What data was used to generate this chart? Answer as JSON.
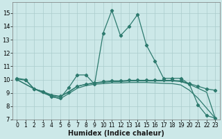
{
  "bg_color": "#cce8e8",
  "grid_color": "#aacccc",
  "line_color": "#2d7a6e",
  "xlabel": "Humidex (Indice chaleur)",
  "xlim": [
    -0.5,
    23.5
  ],
  "ylim": [
    7,
    15.8
  ],
  "yticks": [
    7,
    8,
    9,
    10,
    11,
    12,
    13,
    14,
    15
  ],
  "xticks": [
    0,
    1,
    2,
    3,
    4,
    5,
    6,
    7,
    8,
    9,
    10,
    11,
    12,
    13,
    14,
    15,
    16,
    17,
    18,
    19,
    20,
    21,
    22,
    23
  ],
  "series1_x": [
    0,
    1,
    2,
    3,
    4,
    5,
    6,
    7,
    8,
    9,
    10,
    11,
    12,
    13,
    14,
    15,
    16,
    17,
    18,
    19,
    20,
    21,
    22,
    23
  ],
  "series1_y": [
    10.1,
    10.0,
    9.3,
    9.1,
    8.7,
    8.6,
    9.4,
    10.35,
    10.35,
    9.65,
    13.5,
    15.2,
    13.3,
    14.0,
    14.9,
    12.6,
    11.4,
    10.1,
    10.1,
    10.1,
    9.65,
    8.1,
    7.3,
    7.1
  ],
  "series2_x": [
    0,
    1,
    2,
    3,
    4,
    5,
    6,
    7,
    8,
    9,
    10,
    11,
    12,
    13,
    14,
    15,
    16,
    17,
    18,
    19,
    20,
    21,
    22,
    23
  ],
  "series2_y": [
    10.05,
    9.95,
    9.3,
    9.1,
    8.85,
    8.75,
    9.05,
    9.5,
    9.65,
    9.75,
    9.85,
    9.9,
    9.9,
    9.95,
    9.95,
    9.95,
    9.95,
    9.95,
    9.95,
    9.9,
    9.7,
    9.5,
    9.3,
    9.2
  ],
  "series3_x": [
    0,
    2,
    3,
    4,
    5,
    6,
    7,
    8,
    9,
    10,
    11,
    12,
    13,
    14,
    15,
    16,
    17,
    18,
    19,
    20,
    21,
    22,
    23
  ],
  "series3_y": [
    10.0,
    9.3,
    9.1,
    8.8,
    8.7,
    9.1,
    9.5,
    9.65,
    9.75,
    9.8,
    9.85,
    9.85,
    9.9,
    9.9,
    9.9,
    9.9,
    9.9,
    9.9,
    9.85,
    9.65,
    9.35,
    9.05,
    7.1
  ],
  "series4_x": [
    0,
    2,
    3,
    4,
    5,
    6,
    7,
    8,
    9,
    10,
    11,
    12,
    13,
    14,
    15,
    16,
    17,
    18,
    19,
    20,
    21,
    22,
    23
  ],
  "series4_y": [
    10.0,
    9.3,
    9.0,
    8.75,
    8.55,
    8.95,
    9.35,
    9.55,
    9.65,
    9.7,
    9.75,
    9.75,
    9.78,
    9.78,
    9.78,
    9.75,
    9.72,
    9.7,
    9.6,
    9.2,
    8.6,
    7.85,
    7.1
  ]
}
